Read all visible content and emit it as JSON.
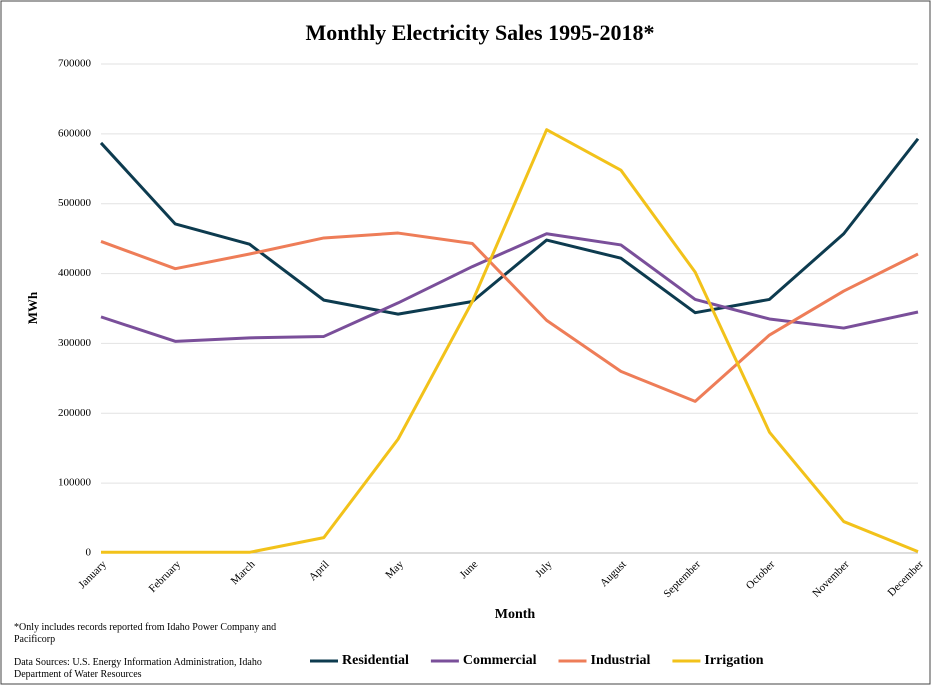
{
  "chart_data": {
    "type": "line",
    "title": "Monthly Electricity Sales 1995-2018*",
    "x_label": "Month",
    "y_label": "MWh",
    "footnote": "*Only includes records reported from Idaho Power Company and Pacificorp",
    "source": "Data Sources: U.S. Energy Information Administration, Idaho Department of Water Resources",
    "categories": [
      "January",
      "February",
      "March",
      "April",
      "May",
      "June",
      "July",
      "August",
      "September",
      "October",
      "November",
      "December"
    ],
    "series": [
      {
        "name": "Residential",
        "color": "#0d3b4f",
        "values": [
          587000,
          471000,
          442000,
          362000,
          342000,
          360000,
          448000,
          422000,
          344000,
          363000,
          457000,
          593000
        ]
      },
      {
        "name": "Commercial",
        "color": "#7a4f9a",
        "values": [
          338000,
          303000,
          308000,
          310000,
          358000,
          410000,
          457000,
          441000,
          363000,
          335000,
          322000,
          345000
        ]
      },
      {
        "name": "Industrial",
        "color": "#ee7d58",
        "values": [
          446000,
          407000,
          428000,
          451000,
          458000,
          443000,
          333000,
          260000,
          217000,
          312000,
          375000,
          428000
        ]
      },
      {
        "name": "Irrigation",
        "color": "#f2c21a",
        "values": [
          1000,
          1000,
          1000,
          22000,
          163000,
          360000,
          606000,
          548000,
          402000,
          173000,
          45000,
          2000
        ]
      }
    ],
    "ylim": [
      0,
      700000
    ],
    "yticks": [
      0,
      100000,
      200000,
      300000,
      400000,
      500000,
      600000,
      700000
    ],
    "grid": true,
    "legend": "bottom"
  }
}
